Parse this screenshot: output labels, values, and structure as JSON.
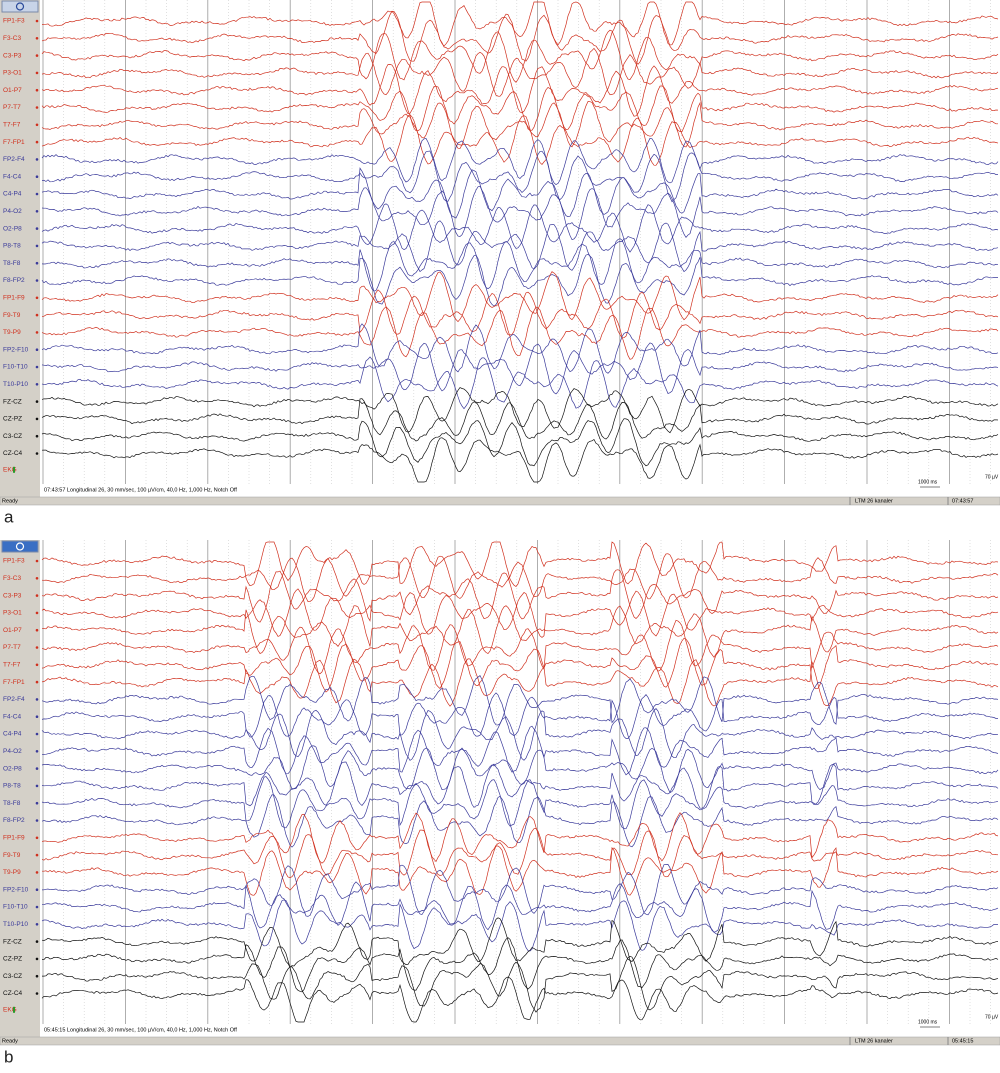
{
  "panels": [
    {
      "label": "a",
      "channels": [
        {
          "name": "FP1-F3",
          "color": "#d0301e"
        },
        {
          "name": "F3-C3",
          "color": "#d0301e"
        },
        {
          "name": "C3-P3",
          "color": "#d0301e"
        },
        {
          "name": "P3-O1",
          "color": "#d0301e"
        },
        {
          "name": "O1-P7",
          "color": "#d0301e"
        },
        {
          "name": "P7-T7",
          "color": "#d0301e"
        },
        {
          "name": "T7-F7",
          "color": "#d0301e"
        },
        {
          "name": "F7-FP1",
          "color": "#d0301e"
        },
        {
          "name": "FP2-F4",
          "color": "#3a3a9a"
        },
        {
          "name": "F4-C4",
          "color": "#3a3a9a"
        },
        {
          "name": "C4-P4",
          "color": "#3a3a9a"
        },
        {
          "name": "P4-O2",
          "color": "#3a3a9a"
        },
        {
          "name": "O2-P8",
          "color": "#3a3a9a"
        },
        {
          "name": "P8-T8",
          "color": "#3a3a9a"
        },
        {
          "name": "T8-F8",
          "color": "#3a3a9a"
        },
        {
          "name": "F8-FP2",
          "color": "#3a3a9a"
        },
        {
          "name": "FP1-F9",
          "color": "#d0301e"
        },
        {
          "name": "F9-T9",
          "color": "#d0301e"
        },
        {
          "name": "T9-P9",
          "color": "#d0301e"
        },
        {
          "name": "FP2-F10",
          "color": "#3a3a9a"
        },
        {
          "name": "F10-T10",
          "color": "#3a3a9a"
        },
        {
          "name": "T10-P10",
          "color": "#3a3a9a"
        },
        {
          "name": "FZ-CZ",
          "color": "#111111"
        },
        {
          "name": "CZ-PZ",
          "color": "#111111"
        },
        {
          "name": "C3-CZ",
          "color": "#111111"
        },
        {
          "name": "CZ-C4",
          "color": "#111111"
        }
      ],
      "ekg": "EKG",
      "info": "07:43:57 Longitudinal 26, 30 mm/sec, 100 µV/cm, 40,0 Hz, 1,000 Hz, Notch Off",
      "ready": "Ready",
      "montage": "LTM 26 kanaler",
      "time": "07:43:57",
      "scale_time": "1000 ms",
      "scale_amp": "70 µV"
    },
    {
      "label": "b",
      "channels": [
        {
          "name": "FP1-F3",
          "color": "#d0301e"
        },
        {
          "name": "F3-C3",
          "color": "#d0301e"
        },
        {
          "name": "C3-P3",
          "color": "#d0301e"
        },
        {
          "name": "P3-O1",
          "color": "#d0301e"
        },
        {
          "name": "O1-P7",
          "color": "#d0301e"
        },
        {
          "name": "P7-T7",
          "color": "#d0301e"
        },
        {
          "name": "T7-F7",
          "color": "#d0301e"
        },
        {
          "name": "F7-FP1",
          "color": "#d0301e"
        },
        {
          "name": "FP2-F4",
          "color": "#3a3a9a"
        },
        {
          "name": "F4-C4",
          "color": "#3a3a9a"
        },
        {
          "name": "C4-P4",
          "color": "#3a3a9a"
        },
        {
          "name": "P4-O2",
          "color": "#3a3a9a"
        },
        {
          "name": "O2-P8",
          "color": "#3a3a9a"
        },
        {
          "name": "P8-T8",
          "color": "#3a3a9a"
        },
        {
          "name": "T8-F8",
          "color": "#3a3a9a"
        },
        {
          "name": "F8-FP2",
          "color": "#3a3a9a"
        },
        {
          "name": "FP1-F9",
          "color": "#d0301e"
        },
        {
          "name": "F9-T9",
          "color": "#d0301e"
        },
        {
          "name": "T9-P9",
          "color": "#d0301e"
        },
        {
          "name": "FP2-F10",
          "color": "#3a3a9a"
        },
        {
          "name": "F10-T10",
          "color": "#3a3a9a"
        },
        {
          "name": "T10-P10",
          "color": "#3a3a9a"
        },
        {
          "name": "FZ-CZ",
          "color": "#111111"
        },
        {
          "name": "CZ-PZ",
          "color": "#111111"
        },
        {
          "name": "C3-CZ",
          "color": "#111111"
        },
        {
          "name": "CZ-C4",
          "color": "#111111"
        }
      ],
      "ekg": "EKG",
      "info": "05:45:15 Longitudinal 26, 30 mm/sec, 100 µV/cm, 40,0 Hz, 1,000 Hz, Notch Off",
      "ready": "Ready",
      "montage": "LTM 26 kanaler",
      "time": "05:45:15",
      "scale_time": "1000 ms",
      "scale_amp": "70 µV"
    }
  ]
}
